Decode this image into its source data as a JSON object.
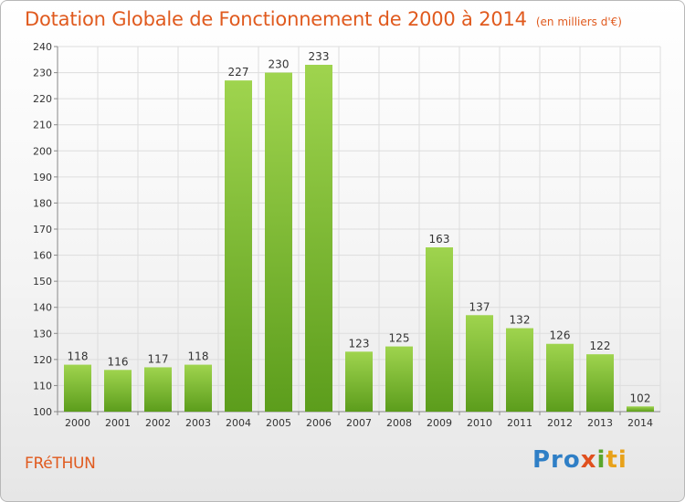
{
  "header": {
    "title": "Dotation Globale de Fonctionnement de 2000 à 2014",
    "subtitle": "(en milliers d'€)"
  },
  "footer": {
    "commune": "FRéTHUN",
    "logo_parts": [
      "Pro",
      "x",
      "i",
      "ti"
    ]
  },
  "colors": {
    "accent": "#e05a1e",
    "bar_top": "#9fd44e",
    "bar_bottom": "#5c9d1c",
    "grid": "#dddddd"
  },
  "chart_data": {
    "type": "bar",
    "title": "Dotation Globale de Fonctionnement de 2000 à 2014",
    "subtitle": "(en milliers d'€)",
    "xlabel": "",
    "ylabel": "",
    "categories": [
      "2000",
      "2001",
      "2002",
      "2003",
      "2004",
      "2005",
      "2006",
      "2007",
      "2008",
      "2009",
      "2010",
      "2011",
      "2012",
      "2013",
      "2014"
    ],
    "values": [
      118,
      116,
      117,
      118,
      227,
      230,
      233,
      123,
      125,
      163,
      137,
      132,
      126,
      122,
      102
    ],
    "ylim": [
      100,
      240
    ],
    "ytick_step": 10,
    "grid": true,
    "data_labels": true
  }
}
